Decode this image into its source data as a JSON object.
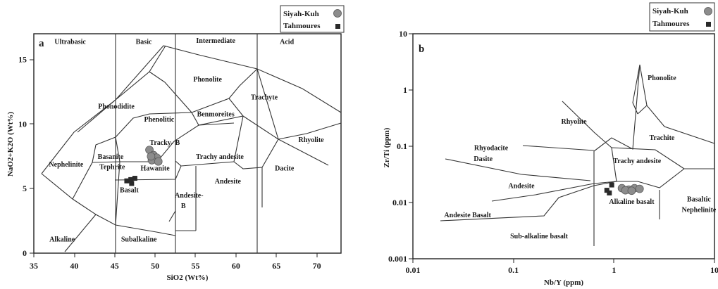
{
  "chart_data": [
    {
      "panel": "a",
      "type": "scatter",
      "xlabel": "SiO2 (Wt%)",
      "ylabel": "NaO2+K2O (Wt%)",
      "xlim": [
        35,
        73
      ],
      "ylim": [
        0,
        17
      ],
      "x_ticks": [
        "35",
        "40",
        "45",
        "50",
        "55",
        "60",
        "65",
        "70"
      ],
      "x_tick_values": [
        35,
        40,
        45,
        50,
        55,
        60,
        65,
        70
      ],
      "y_ticks": [
        "0",
        "5",
        "10",
        "15"
      ],
      "y_tick_values": [
        0,
        5,
        10,
        15
      ],
      "legend": [
        "Siyah-Kuh",
        "Tahmoures"
      ],
      "series": [
        {
          "name": "Siyah-Kuh",
          "marker": "circle",
          "color": "#8c8c8c",
          "points": [
            [
              49.3,
              8.0
            ],
            [
              49.8,
              7.6
            ],
            [
              50.2,
              7.4
            ],
            [
              49.6,
              7.2
            ],
            [
              50.4,
              7.1
            ],
            [
              49.5,
              7.5
            ]
          ]
        },
        {
          "name": "Tahmoures",
          "marker": "square",
          "color": "#2a2a2a",
          "points": [
            [
              46.5,
              5.6
            ],
            [
              47.1,
              5.4
            ],
            [
              47.5,
              5.8
            ],
            [
              47.0,
              5.7
            ]
          ]
        }
      ],
      "field_labels": [
        {
          "text": "Ultrabasic",
          "x": 39.5,
          "y": 16.2
        },
        {
          "text": "Basic",
          "x": 48.6,
          "y": 16.2
        },
        {
          "text": "Intermediate",
          "x": 57.5,
          "y": 16.3
        },
        {
          "text": "Acid",
          "x": 66.3,
          "y": 16.2
        },
        {
          "text": "Phonolite",
          "x": 56.5,
          "y": 13.3
        },
        {
          "text": "Phonodidite",
          "x": 45.2,
          "y": 11.2
        },
        {
          "text": "Phenolitic",
          "x": 50.5,
          "y": 10.2
        },
        {
          "text": "Benmoreites",
          "x": 57.5,
          "y": 10.6
        },
        {
          "text": "Trachyte",
          "x": 63.5,
          "y": 11.9
        },
        {
          "text": "Tracky- B",
          "x": 51.2,
          "y": 8.4
        },
        {
          "text": "Rhyolite",
          "x": 69.3,
          "y": 8.6
        },
        {
          "text": "Nephelinite",
          "x": 39.0,
          "y": 6.7
        },
        {
          "text": "Basanite",
          "x": 44.5,
          "y": 7.3
        },
        {
          "text": "Tephrite",
          "x": 44.7,
          "y": 6.5
        },
        {
          "text": "Trachy andesite",
          "x": 58.0,
          "y": 7.3
        },
        {
          "text": "Hawanite",
          "x": 50.0,
          "y": 6.4
        },
        {
          "text": "Dacite",
          "x": 66.0,
          "y": 6.4
        },
        {
          "text": "Basalt",
          "x": 46.8,
          "y": 4.7
        },
        {
          "text": "Andesite",
          "x": 59.0,
          "y": 5.4
        },
        {
          "text": "Andesite-",
          "x": 54.2,
          "y": 4.3
        },
        {
          "text": "B",
          "x": 53.5,
          "y": 3.5
        },
        {
          "text": "Alkaline",
          "x": 38.5,
          "y": 0.9
        },
        {
          "text": "Subalkaline",
          "x": 48.0,
          "y": 0.9
        }
      ]
    },
    {
      "panel": "b",
      "type": "scatter",
      "xlabel": "Nb/Y (ppm)",
      "ylabel": "Zr/Ti (ppm)",
      "xscale": "log",
      "yscale": "log",
      "xlim": [
        0.01,
        10
      ],
      "ylim": [
        0.001,
        10
      ],
      "x_ticks": [
        "0.01",
        "0.1",
        "1",
        "10"
      ],
      "x_tick_values": [
        0.01,
        0.1,
        1,
        10
      ],
      "y_ticks": [
        "0.001",
        "0.01",
        "0.1",
        "1",
        "10"
      ],
      "y_tick_values": [
        0.001,
        0.01,
        0.1,
        1,
        10
      ],
      "legend": [
        "Siyah-Kuh",
        "Tahmoures"
      ],
      "series": [
        {
          "name": "Siyah-Kuh",
          "marker": "circle",
          "color": "#8c8c8c",
          "points": [
            [
              1.2,
              0.018
            ],
            [
              1.4,
              0.017
            ],
            [
              1.6,
              0.018
            ],
            [
              1.8,
              0.0175
            ],
            [
              1.3,
              0.0165
            ],
            [
              1.5,
              0.0162
            ]
          ]
        },
        {
          "name": "Tahmoures",
          "marker": "square",
          "color": "#2a2a2a",
          "points": [
            [
              0.95,
              0.0205
            ],
            [
              0.85,
              0.0165
            ],
            [
              0.9,
              0.0148
            ]
          ]
        }
      ],
      "field_labels": [
        {
          "text": "Phonolite",
          "x": 3.0,
          "y": 1.5
        },
        {
          "text": "Rhyolite",
          "x": 0.4,
          "y": 0.25
        },
        {
          "text": "Trachite",
          "x": 3.0,
          "y": 0.13
        },
        {
          "text": "Rhyodacite",
          "x": 0.06,
          "y": 0.085
        },
        {
          "text": "Dasite",
          "x": 0.05,
          "y": 0.055
        },
        {
          "text": "Trachy andesite",
          "x": 1.7,
          "y": 0.05
        },
        {
          "text": "Andesite",
          "x": 0.12,
          "y": 0.018
        },
        {
          "text": "Alkaline basalt",
          "x": 1.5,
          "y": 0.0095
        },
        {
          "text": "Basaltic",
          "x": 7.0,
          "y": 0.0105
        },
        {
          "text": "Nephelinite",
          "x": 7.0,
          "y": 0.0068
        },
        {
          "text": "Andesite Basalt",
          "x": 0.035,
          "y": 0.0055
        },
        {
          "text": "Sub-alkaline basalt",
          "x": 0.18,
          "y": 0.0023
        }
      ]
    }
  ]
}
